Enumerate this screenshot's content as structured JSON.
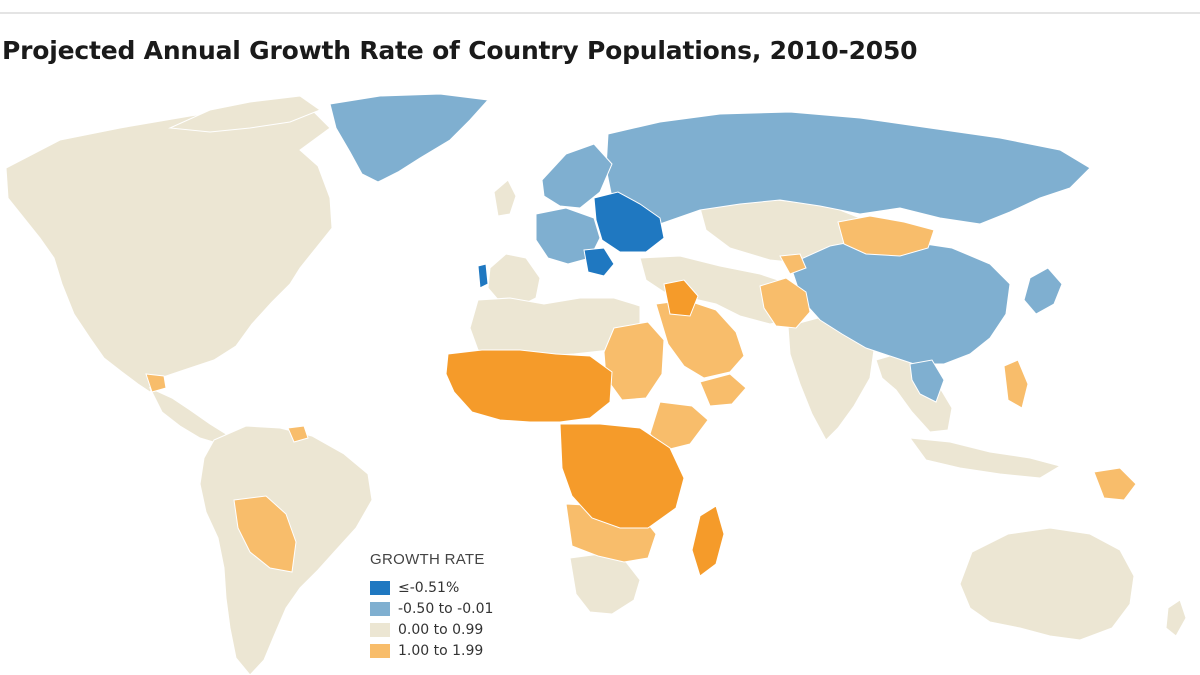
{
  "header": {
    "title": "Projected Annual Growth Rate of Country Populations, 2010-2050"
  },
  "colors": {
    "background": "#ffffff",
    "ocean": "#ffffff",
    "border": "#ffffff",
    "decline_strong": "#1f78c1",
    "decline": "#7fafd0",
    "low_growth": "#ece6d3",
    "growth": "#f8bd6b",
    "high_growth": "#f59b2a"
  },
  "legend": {
    "title": "GROWTH RATE",
    "items": [
      {
        "label": "≤-0.51%",
        "color": "#1f78c1",
        "icon": "swatch-dark-blue"
      },
      {
        "label": "-0.50 to -0.01",
        "color": "#7fafd0",
        "icon": "swatch-light-blue"
      },
      {
        "label": "0.00 to 0.99",
        "color": "#ece6d3",
        "icon": "swatch-beige"
      },
      {
        "label": "1.00 to 1.99",
        "color": "#f8bd6b",
        "icon": "swatch-light-orange"
      }
    ]
  }
}
